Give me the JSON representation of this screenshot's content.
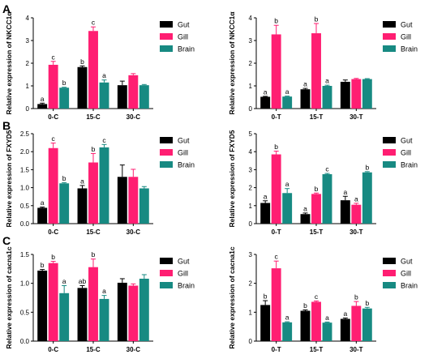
{
  "panel_letters": [
    "A",
    "B",
    "C"
  ],
  "colors": {
    "Gut": "#000000",
    "Gill": "#ff1e72",
    "Brain": "#178a82"
  },
  "chart_data": [
    {
      "type": "bar",
      "panel": "A",
      "ylabel": "Relative expression of NKCC1α",
      "categories": [
        "0-C",
        "15-C",
        "30-C"
      ],
      "ylim": [
        0,
        4
      ],
      "yticks": [
        "0",
        "1",
        "2",
        "3",
        "4"
      ],
      "legend": "right",
      "series": [
        {
          "name": "Gut",
          "values": [
            0.2,
            1.83,
            1.03
          ],
          "errors": [
            0.04,
            0.05,
            0.18
          ],
          "labels": [
            "a",
            "b",
            ""
          ]
        },
        {
          "name": "Gill",
          "values": [
            1.93,
            3.42,
            1.47
          ],
          "errors": [
            0.15,
            0.18,
            0.07
          ],
          "labels": [
            "c",
            "c",
            ""
          ]
        },
        {
          "name": "Brain",
          "values": [
            0.92,
            1.15,
            1.03
          ],
          "errors": [
            0.02,
            0.11,
            0.03
          ],
          "labels": [
            "b",
            "a",
            ""
          ]
        }
      ]
    },
    {
      "type": "bar",
      "panel": "A",
      "ylabel": "Relative expression of NKCC1α",
      "categories": [
        "0-T",
        "15-T",
        "30-T"
      ],
      "ylim": [
        0,
        4
      ],
      "yticks": [
        "0",
        "1",
        "2",
        "3",
        "4"
      ],
      "legend": "right",
      "series": [
        {
          "name": "Gut",
          "values": [
            0.52,
            0.85,
            1.18
          ],
          "errors": [
            0.02,
            0.04,
            0.08
          ],
          "labels": [
            "a",
            "a",
            ""
          ]
        },
        {
          "name": "Gill",
          "values": [
            3.27,
            3.32,
            1.3
          ],
          "errors": [
            0.4,
            0.43,
            0.03
          ],
          "labels": [
            "b",
            "b",
            ""
          ]
        },
        {
          "name": "Brain",
          "values": [
            0.53,
            1.0,
            1.3
          ],
          "errors": [
            0.02,
            0.03,
            0.02
          ],
          "labels": [
            "a",
            "a",
            ""
          ]
        }
      ]
    },
    {
      "type": "bar",
      "panel": "B",
      "ylabel": "Relative expression of FXYD5",
      "categories": [
        "0-C",
        "15-C",
        "30-C"
      ],
      "ylim": [
        0,
        2.5
      ],
      "yticks": [
        "0.0",
        "0.5",
        "1.0",
        "1.5",
        "2.0",
        "2.5"
      ],
      "legend": "right",
      "series": [
        {
          "name": "Gut",
          "values": [
            0.44,
            0.98,
            1.3
          ],
          "errors": [
            0.02,
            0.08,
            0.33
          ],
          "labels": [
            "a",
            "a",
            ""
          ]
        },
        {
          "name": "Gill",
          "values": [
            2.1,
            1.7,
            1.3
          ],
          "errors": [
            0.14,
            0.25,
            0.21
          ],
          "labels": [
            "c",
            "b",
            ""
          ]
        },
        {
          "name": "Brain",
          "values": [
            1.12,
            2.12,
            0.98
          ],
          "errors": [
            0.02,
            0.08,
            0.05
          ],
          "labels": [
            "b",
            "c",
            ""
          ]
        }
      ]
    },
    {
      "type": "bar",
      "panel": "B",
      "ylabel": "Relative expression of FXYD5",
      "categories": [
        "0-T",
        "15-T",
        "30-T"
      ],
      "ylim": [
        0,
        5
      ],
      "yticks": [
        "0",
        "1",
        "2",
        "3",
        "4",
        "5"
      ],
      "legend": "right",
      "series": [
        {
          "name": "Gut",
          "values": [
            1.15,
            0.53,
            1.3
          ],
          "errors": [
            0.12,
            0.06,
            0.22
          ],
          "labels": [
            "a",
            "a",
            "a"
          ]
        },
        {
          "name": "Gill",
          "values": [
            3.85,
            1.65,
            1.05
          ],
          "errors": [
            0.18,
            0.05,
            0.08
          ],
          "labels": [
            "b",
            "b",
            "a"
          ]
        },
        {
          "name": "Brain",
          "values": [
            1.7,
            2.75,
            2.85
          ],
          "errors": [
            0.25,
            0.04,
            0.04
          ],
          "labels": [
            "a",
            "c",
            "b"
          ]
        }
      ]
    },
    {
      "type": "bar",
      "panel": "C",
      "ylabel": "Relative expression of cacna1c",
      "categories": [
        "0-C",
        "15-C",
        "30-C"
      ],
      "ylim": [
        0,
        1.5
      ],
      "yticks": [
        "0.0",
        "0.5",
        "1.0",
        "1.5"
      ],
      "legend": "right",
      "series": [
        {
          "name": "Gut",
          "values": [
            1.22,
            0.92,
            1.01
          ],
          "errors": [
            0.02,
            0.04,
            0.07
          ],
          "labels": [
            "b",
            "ab",
            ""
          ]
        },
        {
          "name": "Gill",
          "values": [
            1.35,
            1.28,
            0.96
          ],
          "errors": [
            0.03,
            0.14,
            0.03
          ],
          "labels": [
            "b",
            "b",
            ""
          ]
        },
        {
          "name": "Brain",
          "values": [
            0.83,
            0.73,
            1.08
          ],
          "errors": [
            0.13,
            0.06,
            0.07
          ],
          "labels": [
            "a",
            "a",
            ""
          ]
        }
      ]
    },
    {
      "type": "bar",
      "panel": "C",
      "ylabel": "Relative expression of cacna1c",
      "categories": [
        "0-T",
        "15-T",
        "30-T"
      ],
      "ylim": [
        0,
        3
      ],
      "yticks": [
        "0",
        "1",
        "2",
        "3"
      ],
      "legend": "right",
      "series": [
        {
          "name": "Gut",
          "values": [
            1.25,
            1.05,
            0.77
          ],
          "errors": [
            0.15,
            0.03,
            0.03
          ],
          "labels": [
            "b",
            "b",
            "a"
          ]
        },
        {
          "name": "Gill",
          "values": [
            2.52,
            1.36,
            1.22
          ],
          "errors": [
            0.25,
            0.03,
            0.15
          ],
          "labels": [
            "c",
            "c",
            "b"
          ]
        },
        {
          "name": "Brain",
          "values": [
            0.65,
            0.64,
            1.13
          ],
          "errors": [
            0.02,
            0.02,
            0.04
          ],
          "labels": [
            "a",
            "a",
            "b"
          ]
        }
      ]
    }
  ]
}
